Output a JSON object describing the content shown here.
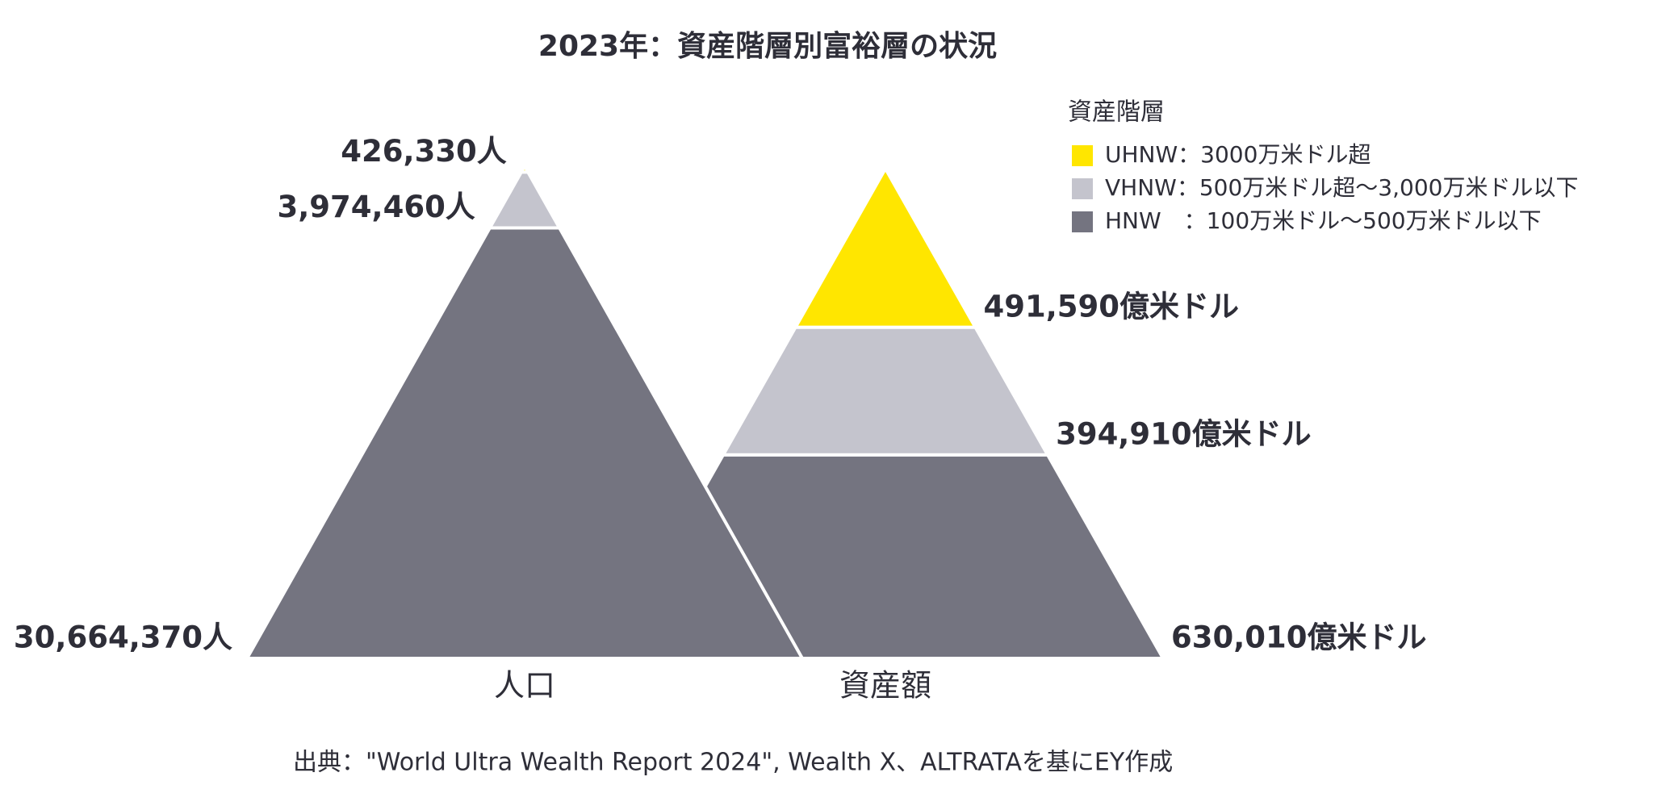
{
  "chart_data": {
    "type": "pyramid",
    "title": "2023年：資産階層別富裕層の状況",
    "legend_title": "資産階層",
    "series": [
      {
        "name": "UHNW：3000万米ドル超",
        "color": "#ffe600"
      },
      {
        "name": "VHNW：500万米ドル超～3,000万米ドル以下",
        "color": "#c4c4cd"
      },
      {
        "name": "HNW　：100万米ドル～500万米ドル以下",
        "color": "#747480"
      }
    ],
    "pyramids": [
      {
        "name": "人口",
        "values": [
          426330,
          3974460,
          30664370
        ],
        "value_labels": [
          "426,330人",
          "3,974,460人",
          "30,664,370人"
        ],
        "label_side": "left"
      },
      {
        "name": "資産額",
        "values": [
          491590,
          394910,
          630010
        ],
        "value_labels": [
          "491,590億米ドル",
          "394,910億米ドル",
          "630,010億米ドル"
        ],
        "label_side": "right"
      }
    ],
    "source": "出典：\"World Ultra Wealth Report 2024\", Wealth X、ALTRATAを基にEY作成"
  }
}
